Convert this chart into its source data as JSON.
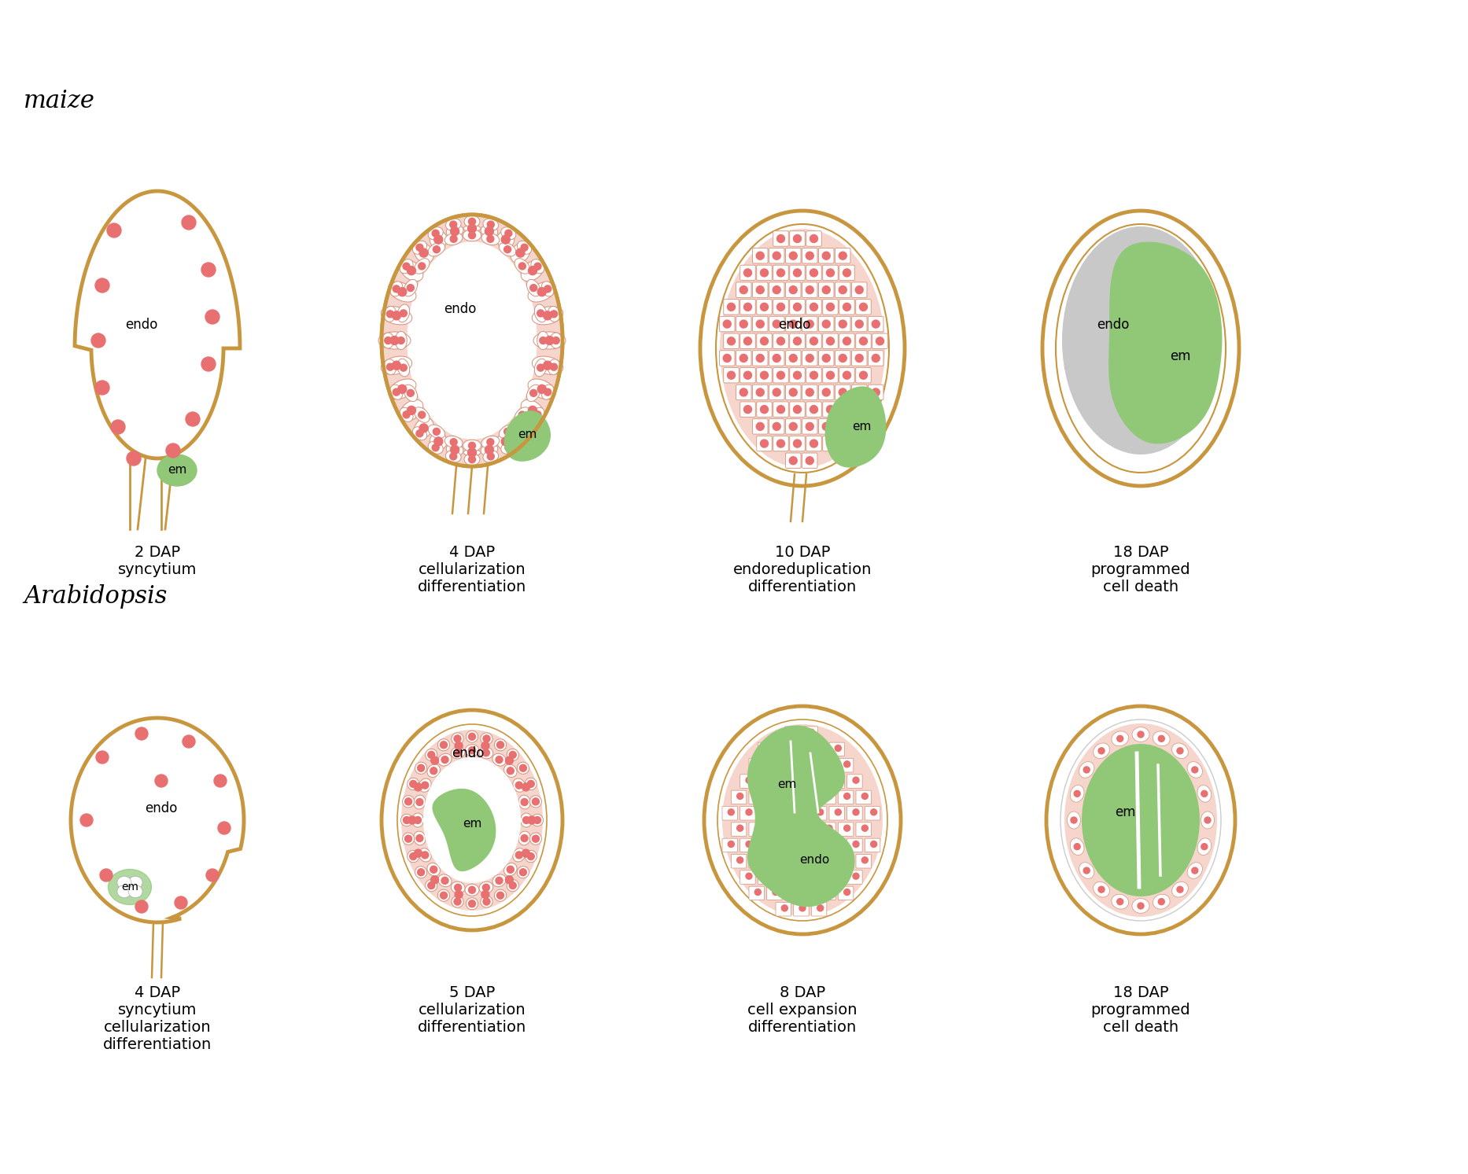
{
  "background_color": "#ffffff",
  "outline_color": "#C8963E",
  "cell_fill": "#F5D5CC",
  "cell_line": "#D4927A",
  "em_color": "#90C878",
  "dot_color": "#E87070",
  "endo_fill_sync": "#ffffff",
  "gray_fill": "#C8C8C8",
  "white_fill": "#ffffff",
  "title_maize": "maize",
  "title_arab": "Arabidopsis",
  "maize_labels": [
    "2 DAP\nsyncytium",
    "4 DAP\ncellularization\ndifferentiation",
    "10 DAP\nendoreduplication\ndifferentiation",
    "18 DAP\nprogrammed\ncell death"
  ],
  "arab_labels": [
    "4 DAP\nsyncytium\ncellularization\ndifferentiation",
    "5 DAP\ncellularization\ndifferentiation",
    "8 DAP\ncell expansion\ndifferentiation",
    "18 DAP\nprogrammed\ncell death"
  ],
  "label_fontsize": 14,
  "title_fontsize": 22
}
